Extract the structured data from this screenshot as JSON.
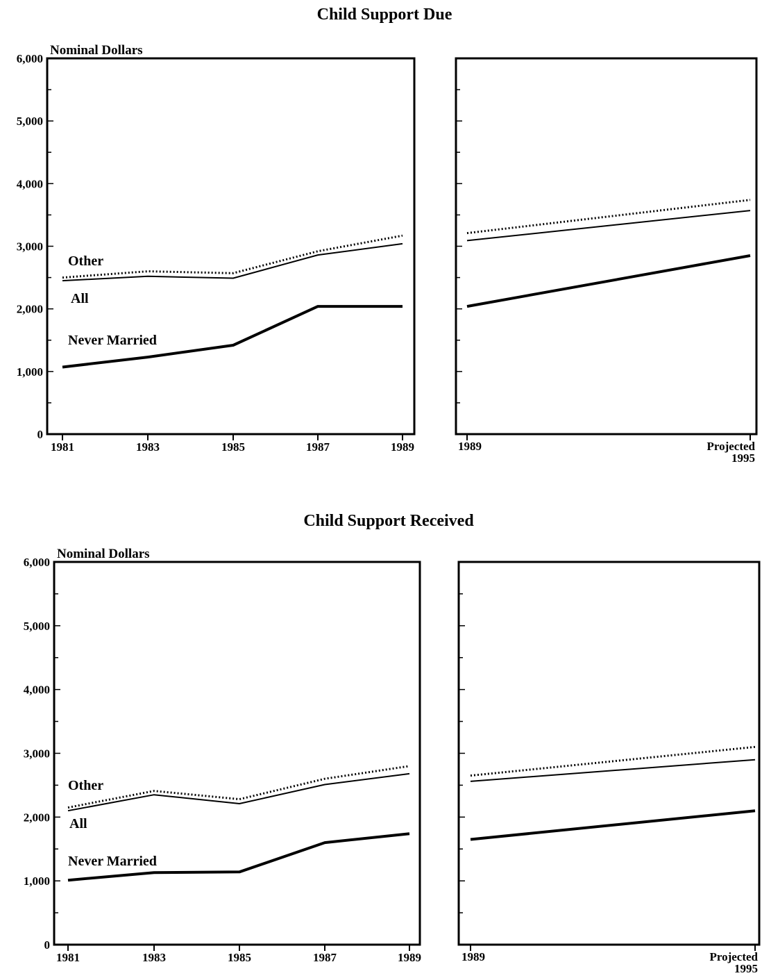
{
  "chart_data": [
    {
      "type": "line",
      "title": "Child Support Due",
      "ylabel": "Nominal Dollars",
      "ylim": [
        0,
        6000
      ],
      "yticks": [
        "0",
        "1,000",
        "2,000",
        "3,000",
        "4,000",
        "5,000",
        "6,000"
      ],
      "grid": false,
      "panels": [
        {
          "x": [
            "1981",
            "1983",
            "1985",
            "1987",
            "1989"
          ],
          "series": [
            {
              "name": "Other",
              "style": "dotted",
              "values": [
                2500,
                2600,
                2570,
                2920,
                3170
              ]
            },
            {
              "name": "All",
              "style": "thin",
              "values": [
                2450,
                2520,
                2490,
                2860,
                3040
              ]
            },
            {
              "name": "Never Married",
              "style": "thick",
              "values": [
                1070,
                1230,
                1420,
                2040,
                2040
              ]
            }
          ]
        },
        {
          "x": [
            "1989",
            "Projected 1995"
          ],
          "xlabels": [
            [
              "1989"
            ],
            [
              "Projected",
              "1995"
            ]
          ],
          "series": [
            {
              "name": "Other",
              "style": "dotted",
              "values": [
                3210,
                3740
              ]
            },
            {
              "name": "All",
              "style": "thin",
              "values": [
                3090,
                3570
              ]
            },
            {
              "name": "Never Married",
              "style": "thick",
              "values": [
                2040,
                2850
              ]
            }
          ]
        }
      ]
    },
    {
      "type": "line",
      "title": "Child Support Received",
      "ylabel": "Nominal Dollars",
      "ylim": [
        0,
        6000
      ],
      "yticks": [
        "0",
        "1,000",
        "2,000",
        "3,000",
        "4,000",
        "5,000",
        "6,000"
      ],
      "grid": false,
      "panels": [
        {
          "x": [
            "1981",
            "1983",
            "1985",
            "1987",
            "1989"
          ],
          "series": [
            {
              "name": "Other",
              "style": "dotted",
              "values": [
                2150,
                2410,
                2280,
                2600,
                2800
              ]
            },
            {
              "name": "All",
              "style": "thin",
              "values": [
                2100,
                2350,
                2210,
                2510,
                2680
              ]
            },
            {
              "name": "Never Married",
              "style": "thick",
              "values": [
                1010,
                1130,
                1140,
                1600,
                1740
              ]
            }
          ]
        },
        {
          "x": [
            "1989",
            "Projected 1995"
          ],
          "xlabels": [
            [
              "1989"
            ],
            [
              "Projected",
              "1995"
            ]
          ],
          "series": [
            {
              "name": "Other",
              "style": "dotted",
              "values": [
                2650,
                3100
              ]
            },
            {
              "name": "All",
              "style": "thin",
              "values": [
                2560,
                2900
              ]
            },
            {
              "name": "Never Married",
              "style": "thick",
              "values": [
                1650,
                2100
              ]
            }
          ]
        }
      ]
    }
  ]
}
